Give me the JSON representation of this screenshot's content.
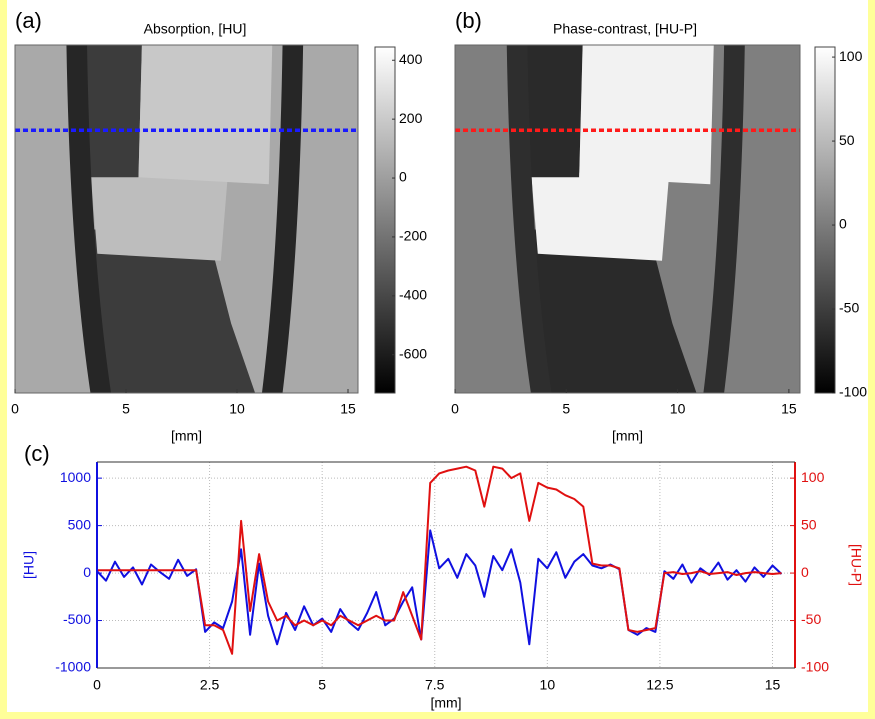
{
  "chart_data": [
    {
      "type": "image",
      "panel_label": "(a)",
      "title": "Absorption, [HU]",
      "xlabel": "[mm]",
      "xlim": [
        0,
        15.45
      ],
      "xticks": [
        0,
        5,
        10,
        15
      ],
      "clim": [
        -730,
        445
      ],
      "cticks": [
        -600,
        -400,
        -200,
        0,
        200,
        400
      ]
    },
    {
      "type": "image",
      "panel_label": "(b)",
      "title": "Phase-contrast, [HU-P]",
      "xlabel": "[mm]",
      "xlim": [
        0,
        15.5
      ],
      "xticks": [
        0,
        5,
        10,
        15
      ],
      "clim": [
        -100,
        106
      ],
      "cticks": [
        -100,
        -50,
        0,
        50,
        100
      ]
    },
    {
      "type": "line",
      "panel_label": "(c)",
      "xlabel": "[mm]",
      "ylabel": "[HU]",
      "y2label": "[HU-P]",
      "xlim": [
        0,
        15.5
      ],
      "xticks": [
        0,
        2.5,
        5,
        7.5,
        10,
        12.5,
        15
      ],
      "ylim": [
        -1000,
        1170
      ],
      "yticks": [
        -1000,
        -500,
        0,
        500,
        1000
      ],
      "y2lim": [
        -100,
        117
      ],
      "y2ticks": [
        -100,
        -50,
        0,
        50,
        100
      ],
      "grid": true,
      "x": [
        0,
        0.2,
        0.4,
        0.6,
        0.8,
        1.0,
        1.2,
        1.4,
        1.6,
        1.8,
        2.0,
        2.2,
        2.4,
        2.6,
        2.8,
        3.0,
        3.2,
        3.4,
        3.6,
        3.8,
        4.0,
        4.2,
        4.4,
        4.6,
        4.8,
        5.0,
        5.2,
        5.4,
        5.6,
        5.8,
        6.0,
        6.2,
        6.4,
        6.6,
        6.8,
        7.0,
        7.2,
        7.4,
        7.6,
        7.8,
        8.0,
        8.2,
        8.4,
        8.6,
        8.8,
        9.0,
        9.2,
        9.4,
        9.6,
        9.8,
        10.0,
        10.2,
        10.4,
        10.6,
        10.8,
        11.0,
        11.2,
        11.4,
        11.6,
        11.8,
        12.0,
        12.2,
        12.4,
        12.6,
        12.8,
        13.0,
        13.2,
        13.4,
        13.6,
        13.8,
        14.0,
        14.2,
        14.4,
        14.6,
        14.8,
        15.0,
        15.2
      ],
      "series": [
        {
          "name": "[HU]",
          "color": "#1010e0",
          "axis": "y",
          "values": [
            20,
            -80,
            120,
            -40,
            60,
            -120,
            90,
            10,
            -60,
            140,
            -30,
            40,
            -620,
            -520,
            -580,
            -300,
            250,
            -650,
            100,
            -450,
            -750,
            -420,
            -600,
            -350,
            -550,
            -480,
            -620,
            -380,
            -520,
            -600,
            -420,
            -200,
            -550,
            -480,
            -300,
            -150,
            -700,
            450,
            50,
            150,
            -50,
            200,
            80,
            -250,
            180,
            30,
            250,
            -100,
            -750,
            150,
            50,
            220,
            -50,
            120,
            200,
            80,
            50,
            90,
            40,
            -600,
            -650,
            -580,
            -620,
            20,
            -60,
            90,
            -100,
            50,
            -20,
            110,
            -70,
            30,
            -90,
            60,
            -40,
            80,
            -10
          ]
        },
        {
          "name": "[HU-P]",
          "color": "#e01010",
          "axis": "y2",
          "values": [
            3,
            3,
            3,
            3,
            3,
            3,
            3,
            3,
            3,
            3,
            3,
            3,
            -55,
            -55,
            -60,
            -85,
            55,
            -40,
            20,
            -30,
            -50,
            -45,
            -55,
            -50,
            -55,
            -50,
            -55,
            -45,
            -50,
            -55,
            -50,
            -45,
            -50,
            -50,
            -20,
            -45,
            -70,
            95,
            105,
            108,
            110,
            112,
            108,
            70,
            112,
            110,
            100,
            105,
            55,
            95,
            90,
            88,
            82,
            78,
            70,
            10,
            8,
            8,
            5,
            -60,
            -62,
            -60,
            -58,
            0,
            1,
            -1,
            0,
            2,
            -1,
            0,
            1,
            -2,
            0,
            1,
            0,
            -1,
            0
          ]
        }
      ]
    }
  ]
}
